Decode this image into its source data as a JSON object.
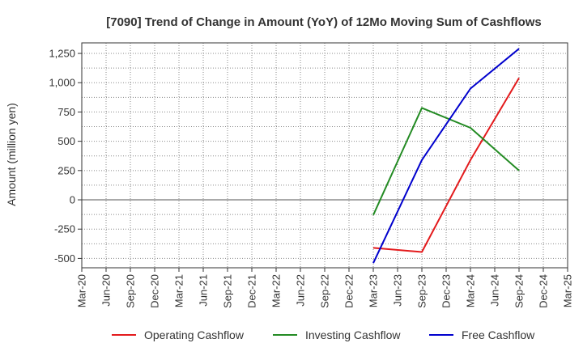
{
  "chart_data": {
    "type": "line",
    "title": "[7090]  Trend of Change in Amount (YoY) of 12Mo Moving Sum of Cashflows",
    "xlabel": "",
    "ylabel": "Amount (million yen)",
    "ylim": [
      -580,
      1340
    ],
    "yticks": [
      -500,
      -250,
      0,
      250,
      500,
      750,
      1000,
      1250
    ],
    "ytick_labels": [
      "-500",
      "-250",
      "0",
      "250",
      "500",
      "750",
      "1,000",
      "1,250"
    ],
    "categories": [
      "Mar-20",
      "Jun-20",
      "Sep-20",
      "Dec-20",
      "Mar-21",
      "Jun-21",
      "Sep-21",
      "Dec-21",
      "Mar-22",
      "Jun-22",
      "Sep-22",
      "Dec-22",
      "Mar-23",
      "Jun-23",
      "Sep-23",
      "Dec-23",
      "Mar-24",
      "Jun-24",
      "Sep-24",
      "Dec-24",
      "Mar-25"
    ],
    "grid": true,
    "legend_position": "bottom",
    "series": [
      {
        "name": "Operating Cashflow",
        "color": "#e31a1c",
        "points": [
          [
            "Mar-23",
            -410
          ],
          [
            "Sep-23",
            -445
          ],
          [
            "Mar-24",
            340
          ],
          [
            "Sep-24",
            1040
          ]
        ]
      },
      {
        "name": "Investing Cashflow",
        "color": "#238b23",
        "points": [
          [
            "Mar-23",
            -130
          ],
          [
            "Sep-23",
            785
          ],
          [
            "Mar-24",
            615
          ],
          [
            "Sep-24",
            250
          ]
        ]
      },
      {
        "name": "Free Cashflow",
        "color": "#0000cd",
        "points": [
          [
            "Mar-23",
            -540
          ],
          [
            "Sep-23",
            340
          ],
          [
            "Mar-24",
            950
          ],
          [
            "Sep-24",
            1290
          ]
        ]
      }
    ]
  }
}
